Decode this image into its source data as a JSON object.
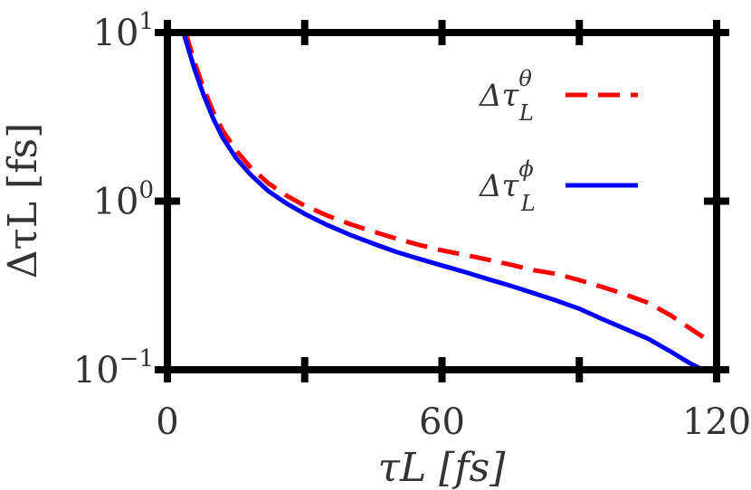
{
  "chart_data": {
    "type": "line",
    "title": "",
    "xlabel": "τL [fs]",
    "ylabel": "ΔτL [fs]",
    "xlim": [
      0,
      120
    ],
    "ylim": [
      0.1,
      10
    ],
    "yscale": "log",
    "grid": false,
    "legend_position": "right",
    "x_ticks": [
      {
        "value": 0,
        "label": "0"
      },
      {
        "value": 60,
        "label": "60"
      },
      {
        "value": 120,
        "label": "120"
      }
    ],
    "x_minor_ticks": [
      30,
      90
    ],
    "y_ticks": [
      {
        "value": 10,
        "base": "10",
        "exp": "1"
      },
      {
        "value": 1,
        "base": "10",
        "exp": "0"
      },
      {
        "value": 0.1,
        "base": "10",
        "exp": "−1"
      }
    ],
    "series": [
      {
        "name": "ΔτLθ",
        "legend": {
          "main": "Δτ",
          "sub": "L",
          "sup": "θ"
        },
        "color": "#ff0000",
        "dash": "dashed",
        "x": [
          4,
          6,
          8,
          10,
          12,
          15,
          18,
          22,
          26,
          30,
          35,
          40,
          45,
          50,
          55,
          60,
          65,
          70,
          75,
          80,
          85,
          90,
          95,
          100,
          105,
          110,
          115,
          119
        ],
        "y": [
          10,
          6.6,
          4.6,
          3.4,
          2.65,
          2.0,
          1.6,
          1.28,
          1.08,
          0.94,
          0.82,
          0.73,
          0.66,
          0.6,
          0.55,
          0.51,
          0.48,
          0.45,
          0.42,
          0.39,
          0.37,
          0.34,
          0.31,
          0.28,
          0.25,
          0.21,
          0.17,
          0.145
        ]
      },
      {
        "name": "ΔτLφ",
        "legend": {
          "main": "Δτ",
          "sub": "L",
          "sup": "ϕ"
        },
        "color": "#0000ff",
        "dash": "solid",
        "x": [
          3.5,
          6,
          8,
          10,
          12,
          15,
          18,
          22,
          26,
          30,
          35,
          40,
          45,
          50,
          55,
          60,
          65,
          70,
          75,
          80,
          85,
          90,
          95,
          100,
          105,
          110,
          114,
          117
        ],
        "y": [
          10,
          6.0,
          4.2,
          3.1,
          2.4,
          1.8,
          1.45,
          1.15,
          0.97,
          0.84,
          0.72,
          0.63,
          0.56,
          0.5,
          0.455,
          0.415,
          0.38,
          0.345,
          0.315,
          0.285,
          0.257,
          0.23,
          0.2,
          0.175,
          0.153,
          0.128,
          0.11,
          0.1
        ]
      }
    ]
  }
}
